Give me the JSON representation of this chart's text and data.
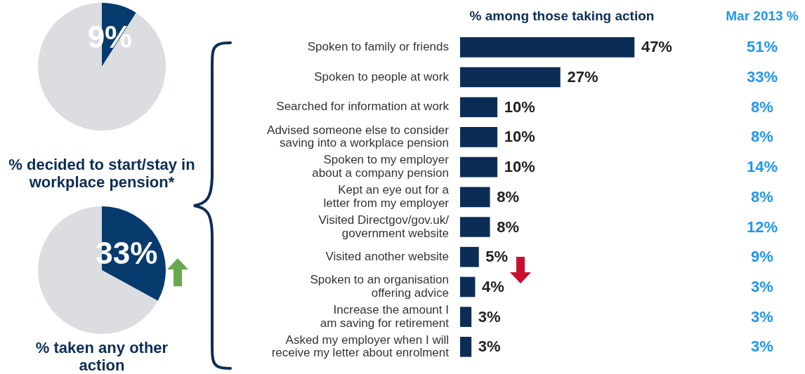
{
  "chart_data": [
    {
      "type": "pie",
      "title": "% decided to start/stay in workplace pension*",
      "categories": [
        null,
        null
      ],
      "values": [
        9,
        91
      ],
      "colors": [
        "#073b6e",
        "#dcdde0"
      ],
      "value_labels": [
        "9%",
        null
      ],
      "legend": false
    },
    {
      "type": "pie",
      "title": "% taken any other action",
      "categories": [
        null,
        null
      ],
      "values": [
        33,
        67
      ],
      "colors": [
        "#073b6e",
        "#dcdde0"
      ],
      "value_labels": [
        "33%",
        null
      ],
      "legend": false
    },
    {
      "type": "bar",
      "orientation": "horizontal",
      "title": "% among those taking action",
      "categories": [
        "Spoken to family or friends",
        "Spoken to people at work",
        "Searched for information at work",
        "Advised someone else to consider\nsaving into a workplace pension",
        "Spoken to my employer\nabout a company pension",
        "Kept an eye out for a\nletter from my employer",
        "Visited Directgov/gov.uk/\ngovernment website",
        "Visited another website",
        "Spoken to an organisation\noffering advice",
        "Increase the amount I\nam saving for retirement",
        "Asked my employer when I will\nreceive my letter about enrolment"
      ],
      "values": [
        47,
        27,
        10,
        10,
        10,
        8,
        8,
        5,
        4,
        3,
        3
      ],
      "color": "#0b2d55",
      "value_labels": [
        "47%",
        "27%",
        "10%",
        "10%",
        "10%",
        "8%",
        "8%",
        "5%",
        "4%",
        "3%",
        "3%"
      ],
      "legend": false,
      "annotations": [
        "Mar 2013 %",
        "51%",
        "33%",
        "8%",
        "8%",
        "14%",
        "8%",
        "12%",
        "9%",
        "3%",
        "3%",
        "3%"
      ]
    }
  ]
}
